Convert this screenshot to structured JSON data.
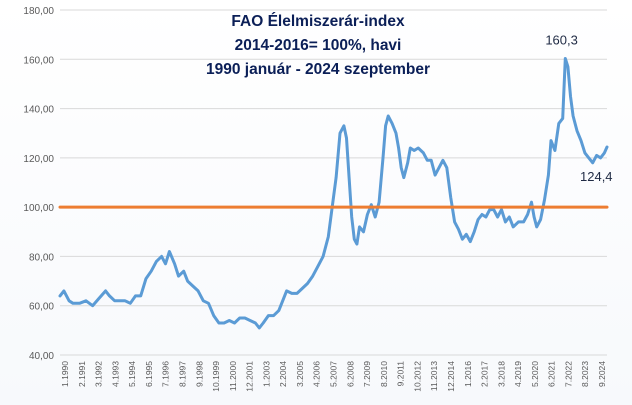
{
  "chart_data": {
    "type": "line",
    "title_lines": [
      "FAO Élelmiszerár-index",
      "2014-2016= 100%, havi",
      "1990 január  - 2024 szeptember"
    ],
    "ylim": [
      40,
      180
    ],
    "yticks": [
      "40,00",
      "60,00",
      "80,00",
      "100,00",
      "120,00",
      "140,00",
      "160,00",
      "180,00"
    ],
    "ytick_values": [
      40,
      60,
      80,
      100,
      120,
      140,
      160,
      180
    ],
    "xticks": [
      "1.1990",
      "2.1991",
      "3.1992",
      "4.1993",
      "5.1994",
      "6.1995",
      "7.1996",
      "8.1997",
      "9.1998",
      "10.1999",
      "11.2000",
      "12.2001",
      "1.2003",
      "2.2004",
      "3.2005",
      "4.2006",
      "5.2007",
      "6.2008",
      "7.2009",
      "8.2010",
      "9.2011",
      "10.2012",
      "11.2013",
      "12.2014",
      "1.2016",
      "2.2017",
      "3.2018",
      "4.2019",
      "5.2020",
      "6.2021",
      "7.2022",
      "8.2023",
      "9.2024"
    ],
    "grid": true,
    "series": [
      {
        "color": "#5b9bd5",
        "points": [
          [
            1990.0,
            64
          ],
          [
            1990.3,
            66
          ],
          [
            1990.7,
            62
          ],
          [
            1991.0,
            61
          ],
          [
            1991.5,
            61
          ],
          [
            1992.0,
            62
          ],
          [
            1992.5,
            60
          ],
          [
            1993.0,
            63
          ],
          [
            1993.5,
            66
          ],
          [
            1993.8,
            64
          ],
          [
            1994.2,
            62
          ],
          [
            1994.6,
            62
          ],
          [
            1995.0,
            62
          ],
          [
            1995.4,
            61
          ],
          [
            1995.8,
            64
          ],
          [
            1996.2,
            64
          ],
          [
            1996.6,
            71
          ],
          [
            1997.0,
            74
          ],
          [
            1997.4,
            78
          ],
          [
            1997.8,
            80
          ],
          [
            1998.1,
            77
          ],
          [
            1998.4,
            82
          ],
          [
            1998.8,
            77
          ],
          [
            1999.1,
            72
          ],
          [
            1999.5,
            74
          ],
          [
            1999.8,
            70
          ],
          [
            2000.2,
            68
          ],
          [
            2000.6,
            66
          ],
          [
            2001.0,
            62
          ],
          [
            2001.4,
            61
          ],
          [
            2001.8,
            56
          ],
          [
            2002.2,
            53
          ],
          [
            2002.6,
            53
          ],
          [
            2003.0,
            54
          ],
          [
            2003.4,
            53
          ],
          [
            2003.8,
            55
          ],
          [
            2004.2,
            55
          ],
          [
            2004.6,
            54
          ],
          [
            2005.0,
            53
          ],
          [
            2005.3,
            51
          ],
          [
            2005.6,
            53
          ],
          [
            2006.0,
            56
          ],
          [
            2006.4,
            56
          ],
          [
            2006.8,
            58
          ],
          [
            2007.1,
            62
          ],
          [
            2007.4,
            66
          ],
          [
            2007.8,
            65
          ],
          [
            2008.2,
            65
          ],
          [
            2008.6,
            67
          ],
          [
            2009.0,
            69
          ],
          [
            2009.4,
            72
          ],
          [
            2009.8,
            76
          ],
          [
            2010.2,
            80
          ],
          [
            2010.6,
            88
          ],
          [
            2010.9,
            100
          ],
          [
            2011.2,
            112
          ],
          [
            2011.5,
            130
          ],
          [
            2011.8,
            133
          ],
          [
            2012.0,
            128
          ],
          [
            2012.2,
            112
          ],
          [
            2012.4,
            96
          ],
          [
            2012.6,
            87
          ],
          [
            2012.8,
            85
          ],
          [
            2013.0,
            92
          ],
          [
            2013.3,
            90
          ],
          [
            2013.6,
            97
          ],
          [
            2013.9,
            101
          ],
          [
            2014.2,
            96
          ],
          [
            2014.5,
            102
          ],
          [
            2014.8,
            120
          ],
          [
            2015.0,
            133
          ],
          [
            2015.2,
            137
          ],
          [
            2015.5,
            134
          ],
          [
            2015.8,
            130
          ],
          [
            2016.0,
            124
          ],
          [
            2016.2,
            116
          ],
          [
            2016.4,
            112
          ],
          [
            2016.7,
            118
          ],
          [
            2016.9,
            124
          ],
          [
            2017.2,
            123
          ],
          [
            2017.5,
            124
          ],
          [
            2017.9,
            122
          ],
          [
            2018.2,
            119
          ],
          [
            2018.5,
            119
          ],
          [
            2018.8,
            113
          ],
          [
            2019.1,
            116
          ],
          [
            2019.4,
            119
          ],
          [
            2019.7,
            116
          ],
          [
            2020.0,
            104
          ],
          [
            2020.3,
            94
          ],
          [
            2020.6,
            91
          ],
          [
            2020.9,
            87
          ],
          [
            2021.2,
            89
          ],
          [
            2021.5,
            86
          ],
          [
            2021.8,
            90
          ],
          [
            2022.1,
            95
          ],
          [
            2022.4,
            97
          ],
          [
            2022.7,
            96
          ],
          [
            2023.0,
            99
          ],
          [
            2023.3,
            99
          ],
          [
            2023.6,
            96
          ],
          [
            2023.9,
            99
          ],
          [
            2024.2,
            94
          ],
          [
            2024.5,
            96
          ],
          [
            2024.8,
            92
          ],
          [
            2025.2,
            94
          ],
          [
            2025.6,
            94
          ],
          [
            2025.9,
            97
          ],
          [
            2026.2,
            102
          ],
          [
            2026.4,
            96
          ],
          [
            2026.6,
            92
          ],
          [
            2026.9,
            95
          ],
          [
            2027.2,
            103
          ],
          [
            2027.5,
            113
          ],
          [
            2027.7,
            127
          ],
          [
            2028.0,
            123
          ],
          [
            2028.3,
            134
          ],
          [
            2028.6,
            136
          ],
          [
            2028.8,
            160.3
          ],
          [
            2029.0,
            157
          ],
          [
            2029.2,
            145
          ],
          [
            2029.4,
            137
          ],
          [
            2029.7,
            131
          ],
          [
            2030.0,
            127
          ],
          [
            2030.3,
            122
          ],
          [
            2030.6,
            120
          ],
          [
            2030.9,
            118
          ],
          [
            2031.2,
            121
          ],
          [
            2031.5,
            120
          ],
          [
            2031.8,
            122
          ],
          [
            2032.0,
            124.4
          ]
        ]
      },
      {
        "color": "#ed7d31",
        "points": [
          [
            1990.0,
            100
          ],
          [
            2032.0,
            100
          ]
        ]
      }
    ],
    "annotations": [
      {
        "text": "160,3",
        "x": 2028.8,
        "y": 160.3
      },
      {
        "text": "124,4",
        "x": 2032.0,
        "y": 124.4
      }
    ]
  }
}
